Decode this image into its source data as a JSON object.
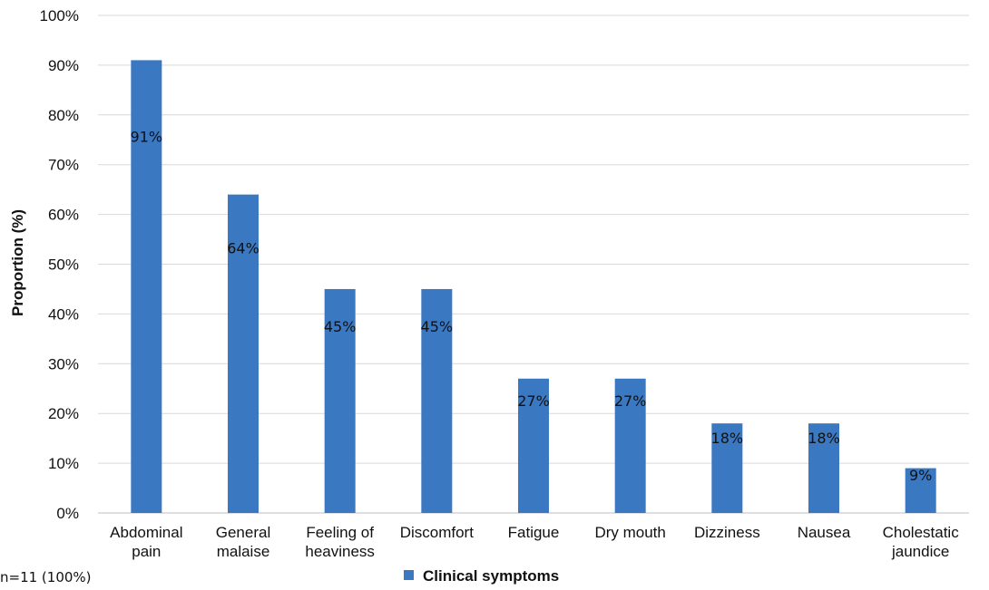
{
  "chart_data": {
    "type": "bar",
    "categories": [
      [
        "Abdominal",
        "pain"
      ],
      [
        "General",
        "malaise"
      ],
      [
        "Feeling of",
        "heaviness"
      ],
      [
        "Discomfort"
      ],
      [
        "Fatigue"
      ],
      [
        "Dry mouth"
      ],
      [
        "Dizziness"
      ],
      [
        "Nausea"
      ],
      [
        "Cholestatic",
        "jaundice"
      ]
    ],
    "values": [
      91,
      64,
      45,
      45,
      27,
      27,
      18,
      18,
      9
    ],
    "data_labels": [
      "91%",
      "64%",
      "45%",
      "45%",
      "27%",
      "27%",
      "18%",
      "18%",
      "9%"
    ],
    "series_name": "Clinical symptoms",
    "ylabel": "Proportion (%)",
    "ylim": [
      0,
      100
    ],
    "yticks": [
      "0%",
      "10%",
      "20%",
      "30%",
      "40%",
      "50%",
      "60%",
      "70%",
      "80%",
      "90%",
      "100%"
    ],
    "grid": true,
    "legend_position": "bottom",
    "bar_color": "#3b78c2",
    "grid_color": "#d9d9d9"
  },
  "note": "n=11 (100%)"
}
